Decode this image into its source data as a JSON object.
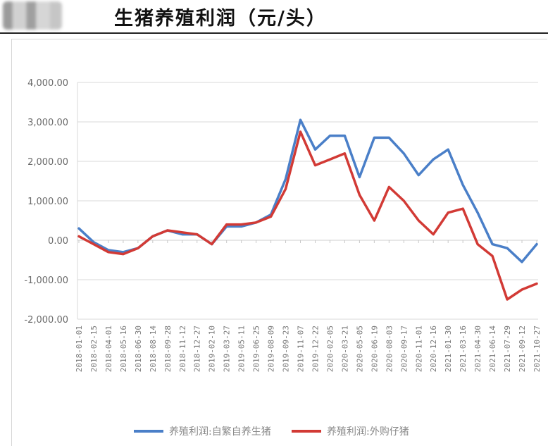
{
  "header": {
    "title": "生猪养殖利润（元/头）"
  },
  "chart_data": {
    "type": "line",
    "title": "生猪养殖利润（元/头）",
    "xlabel": "",
    "ylabel": "",
    "ylim": [
      -2000,
      4000
    ],
    "yticks": [
      "4,000.00",
      "3,000.00",
      "2,000.00",
      "1,000.00",
      "0.00",
      "-1,000.00",
      "-2,000.00"
    ],
    "ytick_values": [
      4000,
      3000,
      2000,
      1000,
      0,
      -1000,
      -2000
    ],
    "grid": "horizontal",
    "legend_position": "bottom",
    "categories": [
      "2018-01-01",
      "2018-02-15",
      "2018-04-01",
      "2018-05-16",
      "2018-06-30",
      "2018-08-14",
      "2018-09-28",
      "2018-11-12",
      "2018-12-27",
      "2019-02-10",
      "2019-03-27",
      "2019-05-11",
      "2019-06-25",
      "2019-08-09",
      "2019-09-23",
      "2019-11-07",
      "2019-12-22",
      "2020-02-05",
      "2020-03-21",
      "2020-05-05",
      "2020-06-19",
      "2020-08-03",
      "2020-09-17",
      "2020-11-01",
      "2020-12-16",
      "2021-01-30",
      "2021-03-16",
      "2021-04-30",
      "2021-06-14",
      "2021-07-29",
      "2021-09-12",
      "2021-10-27"
    ],
    "series": [
      {
        "name": "养殖利润:自繁自养生猪",
        "color": "#4a7fc8",
        "values": [
          300,
          -50,
          -250,
          -300,
          -200,
          100,
          250,
          150,
          150,
          -100,
          350,
          350,
          450,
          650,
          1550,
          3050,
          2300,
          2650,
          2650,
          1600,
          2600,
          2600,
          2200,
          1650,
          2050,
          2300,
          1400,
          700,
          -100,
          -200,
          -550,
          -100
        ]
      },
      {
        "name": "养殖利润:外购仔猪",
        "color": "#d23a35",
        "values": [
          100,
          -100,
          -300,
          -350,
          -200,
          100,
          250,
          200,
          150,
          -100,
          400,
          400,
          450,
          600,
          1300,
          2750,
          1900,
          2050,
          2200,
          1150,
          500,
          1350,
          1000,
          500,
          150,
          700,
          800,
          -100,
          -400,
          -1500,
          -1250,
          -1100
        ]
      }
    ]
  },
  "legend": {
    "items": [
      {
        "label": "养殖利润:自繁自养生猪",
        "color": "#4a7fc8"
      },
      {
        "label": "养殖利润:外购仔猪",
        "color": "#d23a35"
      }
    ]
  }
}
